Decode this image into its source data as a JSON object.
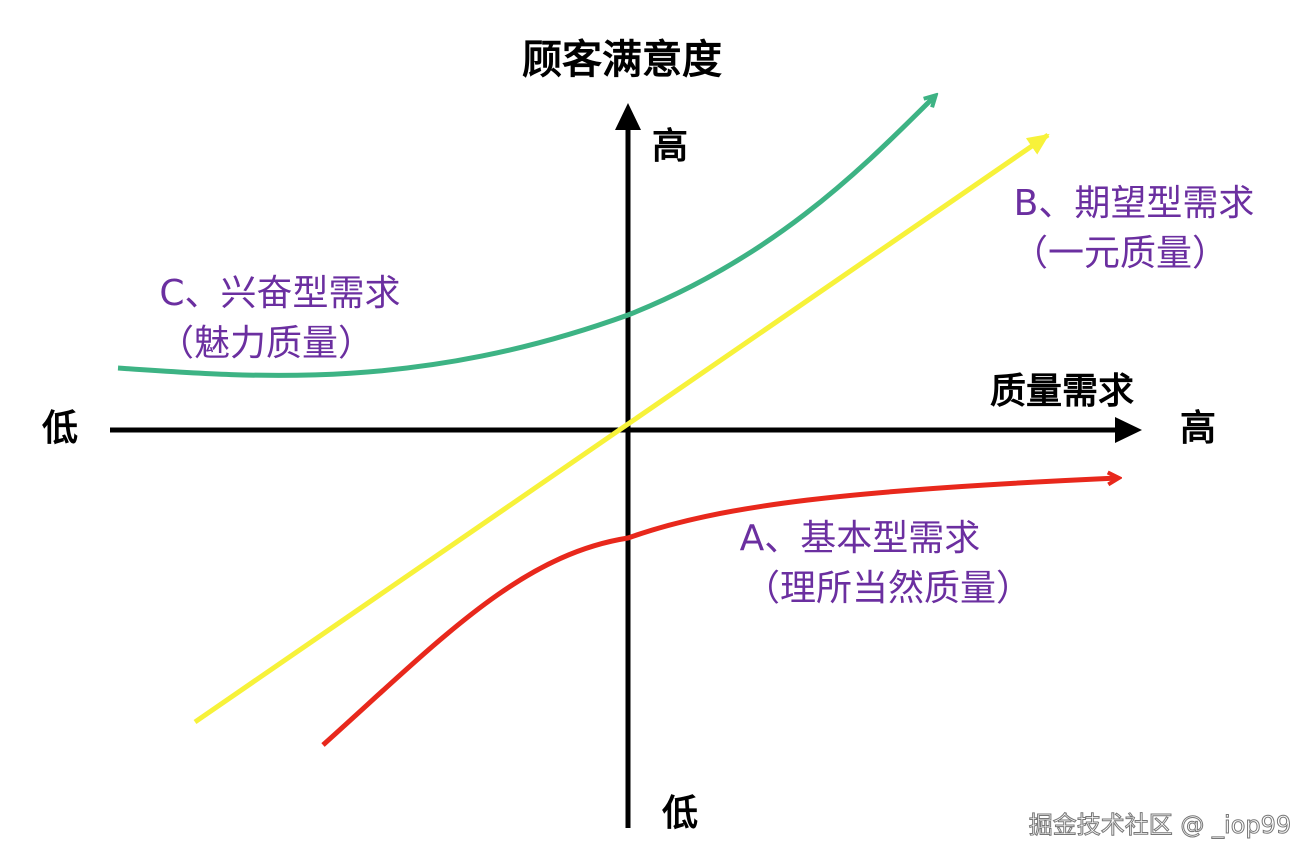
{
  "y_axis": {
    "title": "顾客满意度",
    "high": "高",
    "low": "低"
  },
  "x_axis": {
    "title": "质量需求",
    "high": "高",
    "low": "低"
  },
  "curves": [
    {
      "name": "A、基本型需求",
      "subtitle": "（理所当然质量）"
    },
    {
      "name": "B、期望型需求",
      "subtitle": "（一元质量）"
    },
    {
      "name": "C、兴奋型需求",
      "subtitle": "（魅力质量）"
    }
  ],
  "watermark": "掘金技术社区 @ _iop99"
}
